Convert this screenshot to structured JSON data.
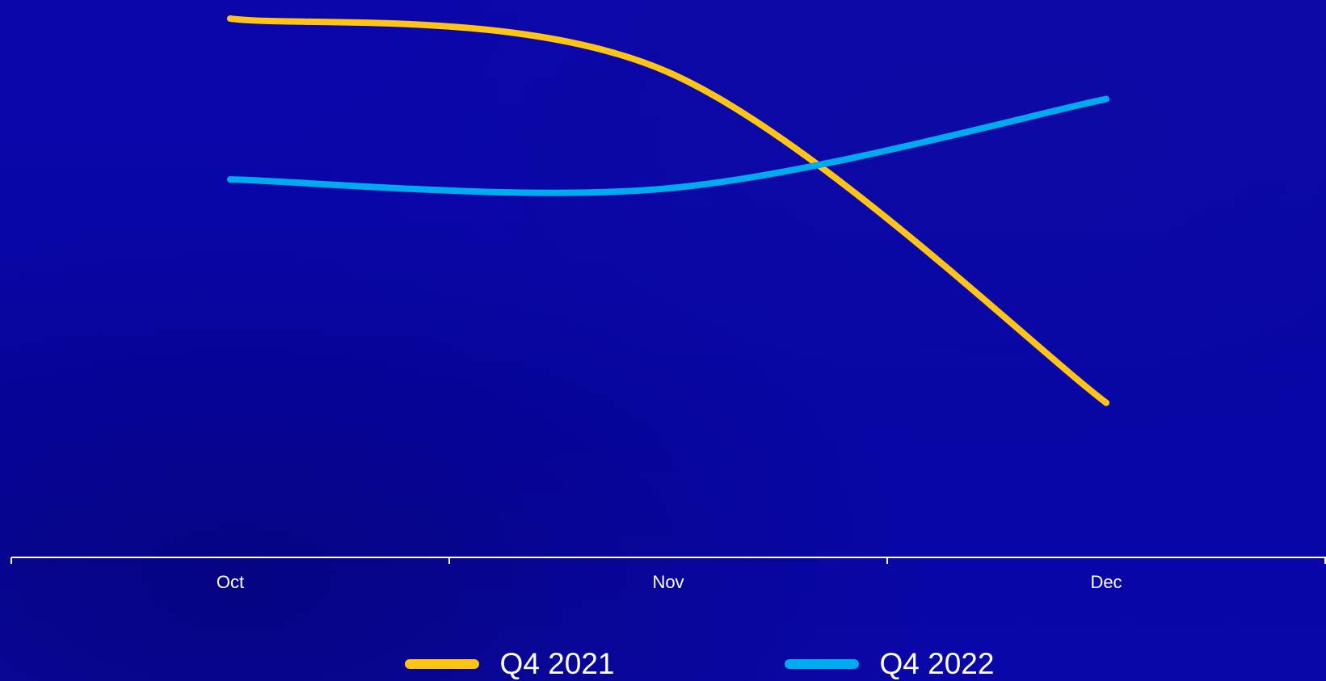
{
  "chart_data": {
    "type": "line",
    "title": "",
    "xlabel": "",
    "ylabel": "",
    "categories": [
      "Oct",
      "Nov",
      "Dec"
    ],
    "series": [
      {
        "name": "Q4 2021",
        "values": [
          100,
          88,
          14
        ],
        "color": "#ffc414"
      },
      {
        "name": "Q4 2022",
        "values": [
          64,
          62,
          82
        ],
        "color": "#00aaee"
      }
    ],
    "ylim": [
      0,
      102
    ],
    "grid": false,
    "legend_position": "bottom-center",
    "axis_color": "#ffffff",
    "background_color": "#0a07a8"
  }
}
